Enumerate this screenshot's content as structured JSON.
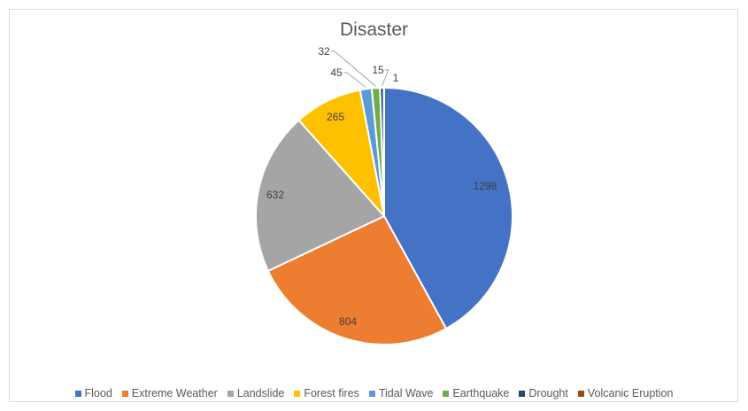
{
  "chart_data": {
    "type": "pie",
    "title": "Disaster",
    "categories": [
      "Flood",
      "Extreme Weather",
      "Landslide",
      "Forest fires",
      "Tidal Wave",
      "Earthquake",
      "Drought",
      "Volcanic Eruption"
    ],
    "values": [
      1298,
      804,
      632,
      265,
      45,
      32,
      15,
      1
    ],
    "colors": [
      "#4472c4",
      "#ed7d31",
      "#a5a5a5",
      "#ffc000",
      "#5b9bd5",
      "#70ad47",
      "#264478",
      "#9e480e"
    ],
    "data_labels": [
      "1298",
      "804",
      "632",
      "265",
      "45",
      "32",
      "15",
      "1"
    ],
    "legend_position": "bottom"
  }
}
